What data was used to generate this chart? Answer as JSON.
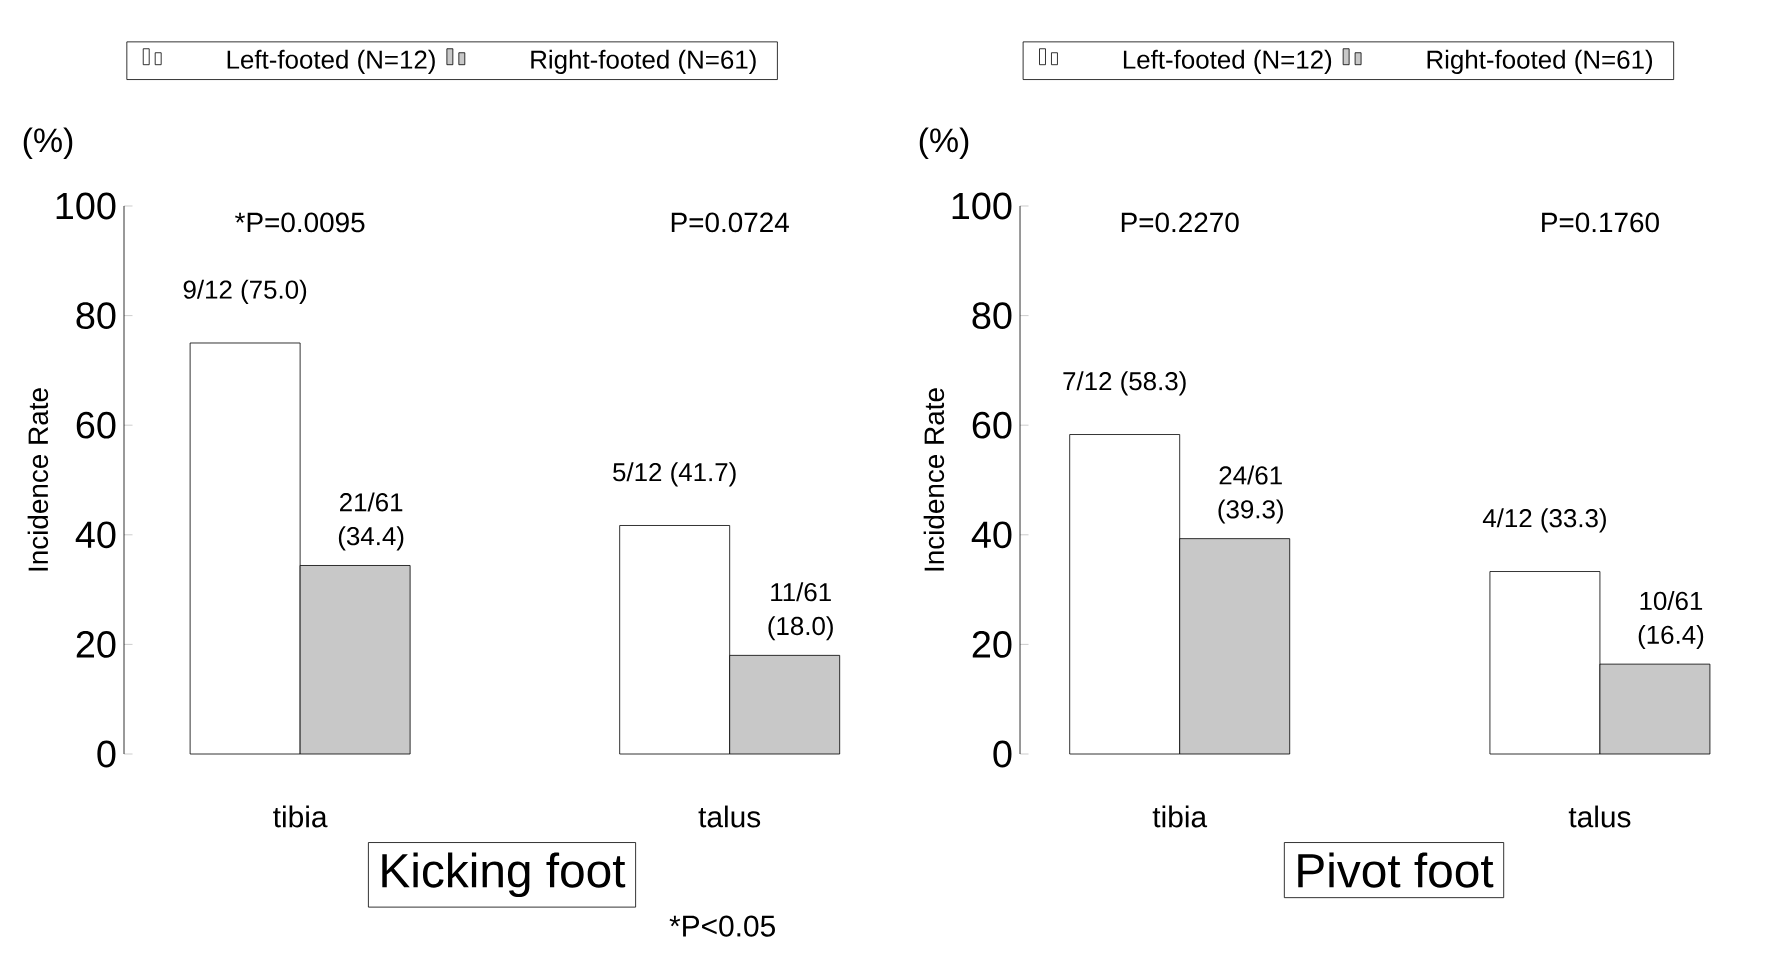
{
  "chart_data": [
    {
      "type": "bar",
      "categories": [
        "tibia",
        "talus"
      ],
      "xlabel": "Kicking foot",
      "ylabel": "Incidence Rate",
      "series": [
        {
          "name": "Left-footed (N=12)",
          "color": "#ffffff",
          "values": [
            75.0,
            41.7
          ],
          "value_labels": [
            "9/12 (75.0)",
            "5/12 (41.7)"
          ]
        },
        {
          "name": "Right-footed (N=61)",
          "color": "#c8c8c8",
          "values": [
            34.4,
            18.0
          ],
          "value_labels": [
            "21/61 (34.4)",
            "11/61 (18.0)"
          ]
        }
      ],
      "ylim": [
        0,
        100
      ],
      "yticks": [
        0,
        20,
        40,
        60,
        80,
        100
      ],
      "legend": "top",
      "annotations": [
        "(%)",
        "*P=0.0095",
        "P=0.0724",
        "*P<0.05"
      ]
    },
    {
      "type": "bar",
      "categories": [
        "tibia",
        "talus"
      ],
      "xlabel": "Pivot foot",
      "ylabel": "Incidence Rate",
      "series": [
        {
          "name": "Left-footed (N=12)",
          "color": "#ffffff",
          "values": [
            58.3,
            33.3
          ],
          "value_labels": [
            "7/12 (58.3)",
            "4/12 (33.3)"
          ]
        },
        {
          "name": "Right-footed (N=61)",
          "color": "#c8c8c8",
          "values": [
            39.3,
            16.4
          ],
          "value_labels": [
            "24/61 (39.3)",
            "10/61 (16.4)"
          ]
        }
      ],
      "ylim": [
        0,
        100
      ],
      "yticks": [
        0,
        20,
        40,
        60,
        80,
        100
      ],
      "legend": "top",
      "annotations": [
        "(%)",
        "P=0.2270",
        "P=0.1760"
      ]
    }
  ]
}
